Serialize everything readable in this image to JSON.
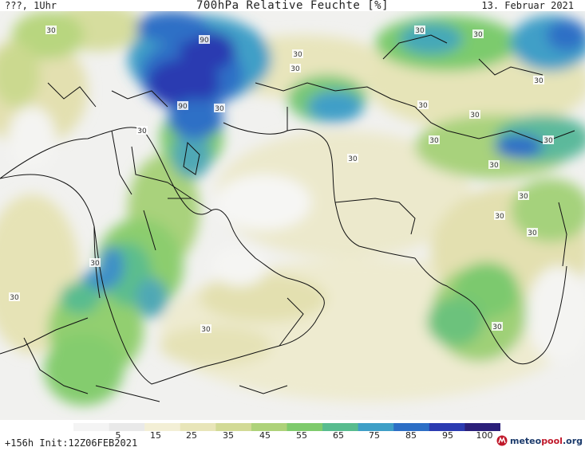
{
  "header": {
    "left": "???, 1Uhr",
    "title": "700hPa Relative Feuchte [%]",
    "date": "13. Februar 2021"
  },
  "footer": {
    "run": "+156h Init:12Z06FEB2021",
    "logo_brand": "meteo",
    "logo_accent": "pool",
    "logo_suffix": ".org"
  },
  "legend": {
    "ticks": [
      "5",
      "15",
      "25",
      "35",
      "45",
      "55",
      "65",
      "75",
      "85",
      "95",
      "100"
    ],
    "colors": [
      "#f4f4f4",
      "#e9e9e9",
      "#f3efd6",
      "#e8e5b9",
      "#d2da96",
      "#aed27a",
      "#7fcb6d",
      "#58bc8f",
      "#3f9fc7",
      "#2d6fc6",
      "#2b3bb1",
      "#2b1f7a"
    ]
  },
  "contour_labels": [
    "30",
    "90",
    "90",
    "30",
    "30",
    "30",
    "30",
    "30",
    "30",
    "30",
    "30",
    "30",
    "30",
    "30",
    "30",
    "30",
    "30",
    "30",
    "30",
    "30",
    "30",
    "30",
    "30"
  ]
}
